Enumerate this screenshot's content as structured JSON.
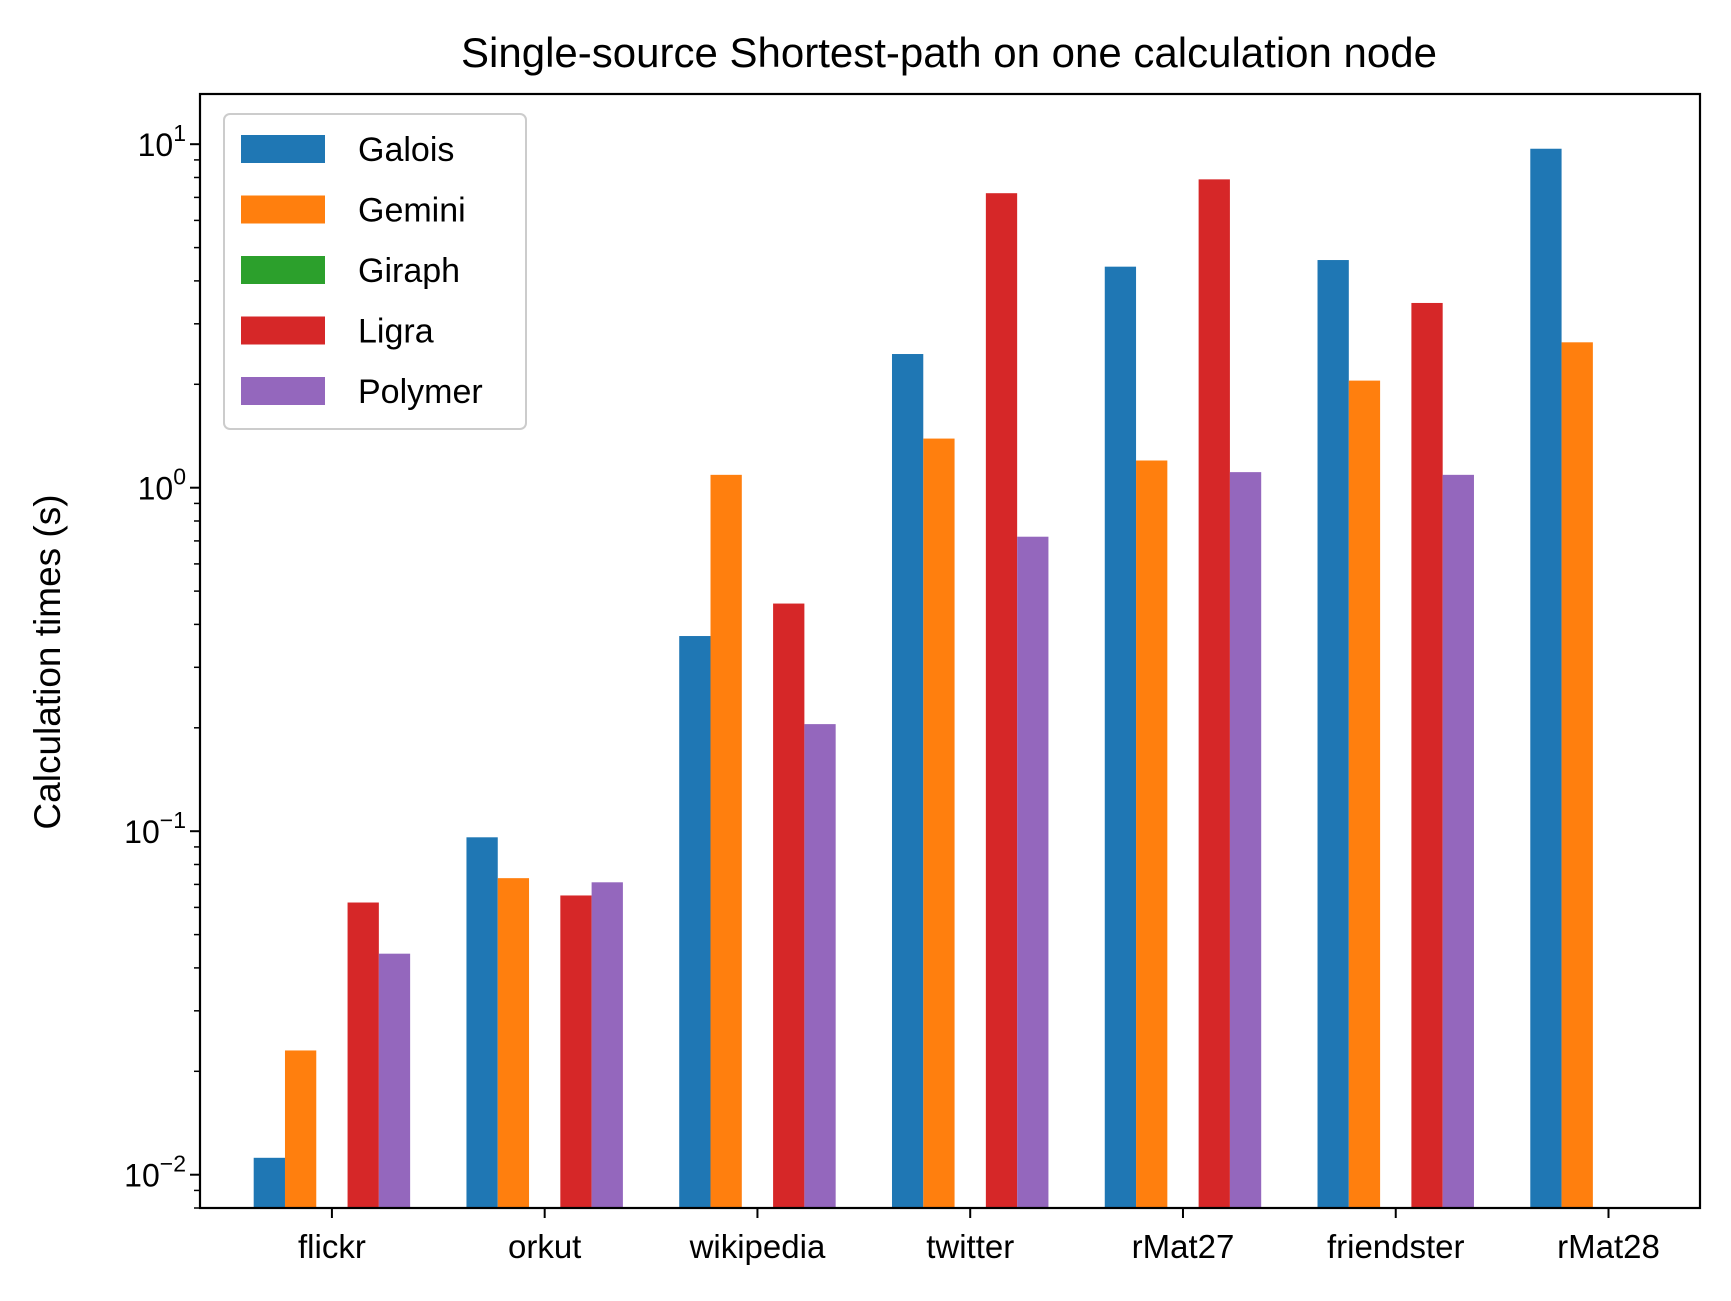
{
  "chart_data": {
    "type": "bar",
    "title": "Single-source Shortest-path on one calculation node",
    "xlabel": "",
    "ylabel": "Calculation times (s)",
    "yscale": "log",
    "ylim": [
      0.008,
      14
    ],
    "y_ticks": [
      {
        "value": 0.01,
        "base": "10",
        "exp": "−2"
      },
      {
        "value": 0.1,
        "base": "10",
        "exp": "−1"
      },
      {
        "value": 1,
        "base": "10",
        "exp": "0"
      },
      {
        "value": 10,
        "base": "10",
        "exp": "1"
      }
    ],
    "grid": false,
    "legend_position": "top-left",
    "categories": [
      "flickr",
      "orkut",
      "wikipedia",
      "twitter",
      "rMat27",
      "friendster",
      "rMat28"
    ],
    "series": [
      {
        "name": "Galois",
        "color": "#1f77b4",
        "values": [
          0.0112,
          0.096,
          0.37,
          2.45,
          4.4,
          4.6,
          9.7
        ]
      },
      {
        "name": "Gemini",
        "color": "#ff7f0e",
        "values": [
          0.023,
          0.073,
          1.09,
          1.39,
          1.2,
          2.05,
          2.65
        ]
      },
      {
        "name": "Giraph",
        "color": "#2ca02c",
        "values": [
          null,
          null,
          null,
          null,
          null,
          null,
          null
        ]
      },
      {
        "name": "Ligra",
        "color": "#d62728",
        "values": [
          0.062,
          0.065,
          0.46,
          7.2,
          7.9,
          3.45,
          null
        ]
      },
      {
        "name": "Polymer",
        "color": "#9467bd",
        "values": [
          0.044,
          0.071,
          0.205,
          0.72,
          1.11,
          1.09,
          null
        ]
      }
    ]
  }
}
